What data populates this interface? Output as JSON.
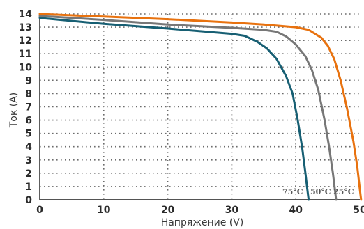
{
  "chart_data": {
    "type": "line",
    "title": "",
    "xlabel": "Напряжение (V)",
    "ylabel": "Ток (A)",
    "xlim": [
      0,
      50
    ],
    "ylim": [
      0,
      14
    ],
    "x_ticks": [
      "0",
      "10",
      "20",
      "30",
      "40",
      "50"
    ],
    "y_ticks": [
      "0",
      "1",
      "2",
      "3",
      "4",
      "5",
      "6",
      "7",
      "8",
      "9",
      "10",
      "11",
      "12",
      "13",
      "14"
    ],
    "grid": true,
    "series": [
      {
        "name": "25°C",
        "color": "#e8720f",
        "points": [
          [
            0,
            14.0
          ],
          [
            10,
            13.8
          ],
          [
            20,
            13.6
          ],
          [
            30,
            13.35
          ],
          [
            35,
            13.2
          ],
          [
            40,
            13.0
          ],
          [
            42,
            12.8
          ],
          [
            44,
            12.2
          ],
          [
            45,
            11.6
          ],
          [
            46,
            10.6
          ],
          [
            47,
            9.0
          ],
          [
            48,
            6.9
          ],
          [
            49,
            4.4
          ],
          [
            49.6,
            2.5
          ],
          [
            50.0,
            0.8
          ],
          [
            50.2,
            0.0
          ]
        ]
      },
      {
        "name": "50°C",
        "color": "#777777",
        "points": [
          [
            0,
            13.85
          ],
          [
            10,
            13.55
          ],
          [
            20,
            13.2
          ],
          [
            30,
            12.95
          ],
          [
            35,
            12.8
          ],
          [
            37,
            12.65
          ],
          [
            38.5,
            12.3
          ],
          [
            40,
            11.7
          ],
          [
            41.5,
            10.8
          ],
          [
            42.5,
            9.8
          ],
          [
            43.5,
            8.3
          ],
          [
            44.5,
            6.0
          ],
          [
            45.2,
            4.0
          ],
          [
            45.8,
            2.0
          ],
          [
            46.1,
            0.8
          ],
          [
            46.3,
            0.0
          ]
        ]
      },
      {
        "name": "75°C",
        "color": "#175f73",
        "points": [
          [
            0,
            13.7
          ],
          [
            10,
            13.25
          ],
          [
            20,
            12.9
          ],
          [
            30,
            12.5
          ],
          [
            32,
            12.35
          ],
          [
            34,
            11.9
          ],
          [
            35.5,
            11.4
          ],
          [
            37,
            10.6
          ],
          [
            38.5,
            9.3
          ],
          [
            39.5,
            8.0
          ],
          [
            40.3,
            6.0
          ],
          [
            41.0,
            3.9
          ],
          [
            41.5,
            2.0
          ],
          [
            41.8,
            0.8
          ],
          [
            42.0,
            0.0
          ]
        ]
      }
    ],
    "annotations": [
      "75°C",
      "50°C",
      "25°C"
    ]
  }
}
